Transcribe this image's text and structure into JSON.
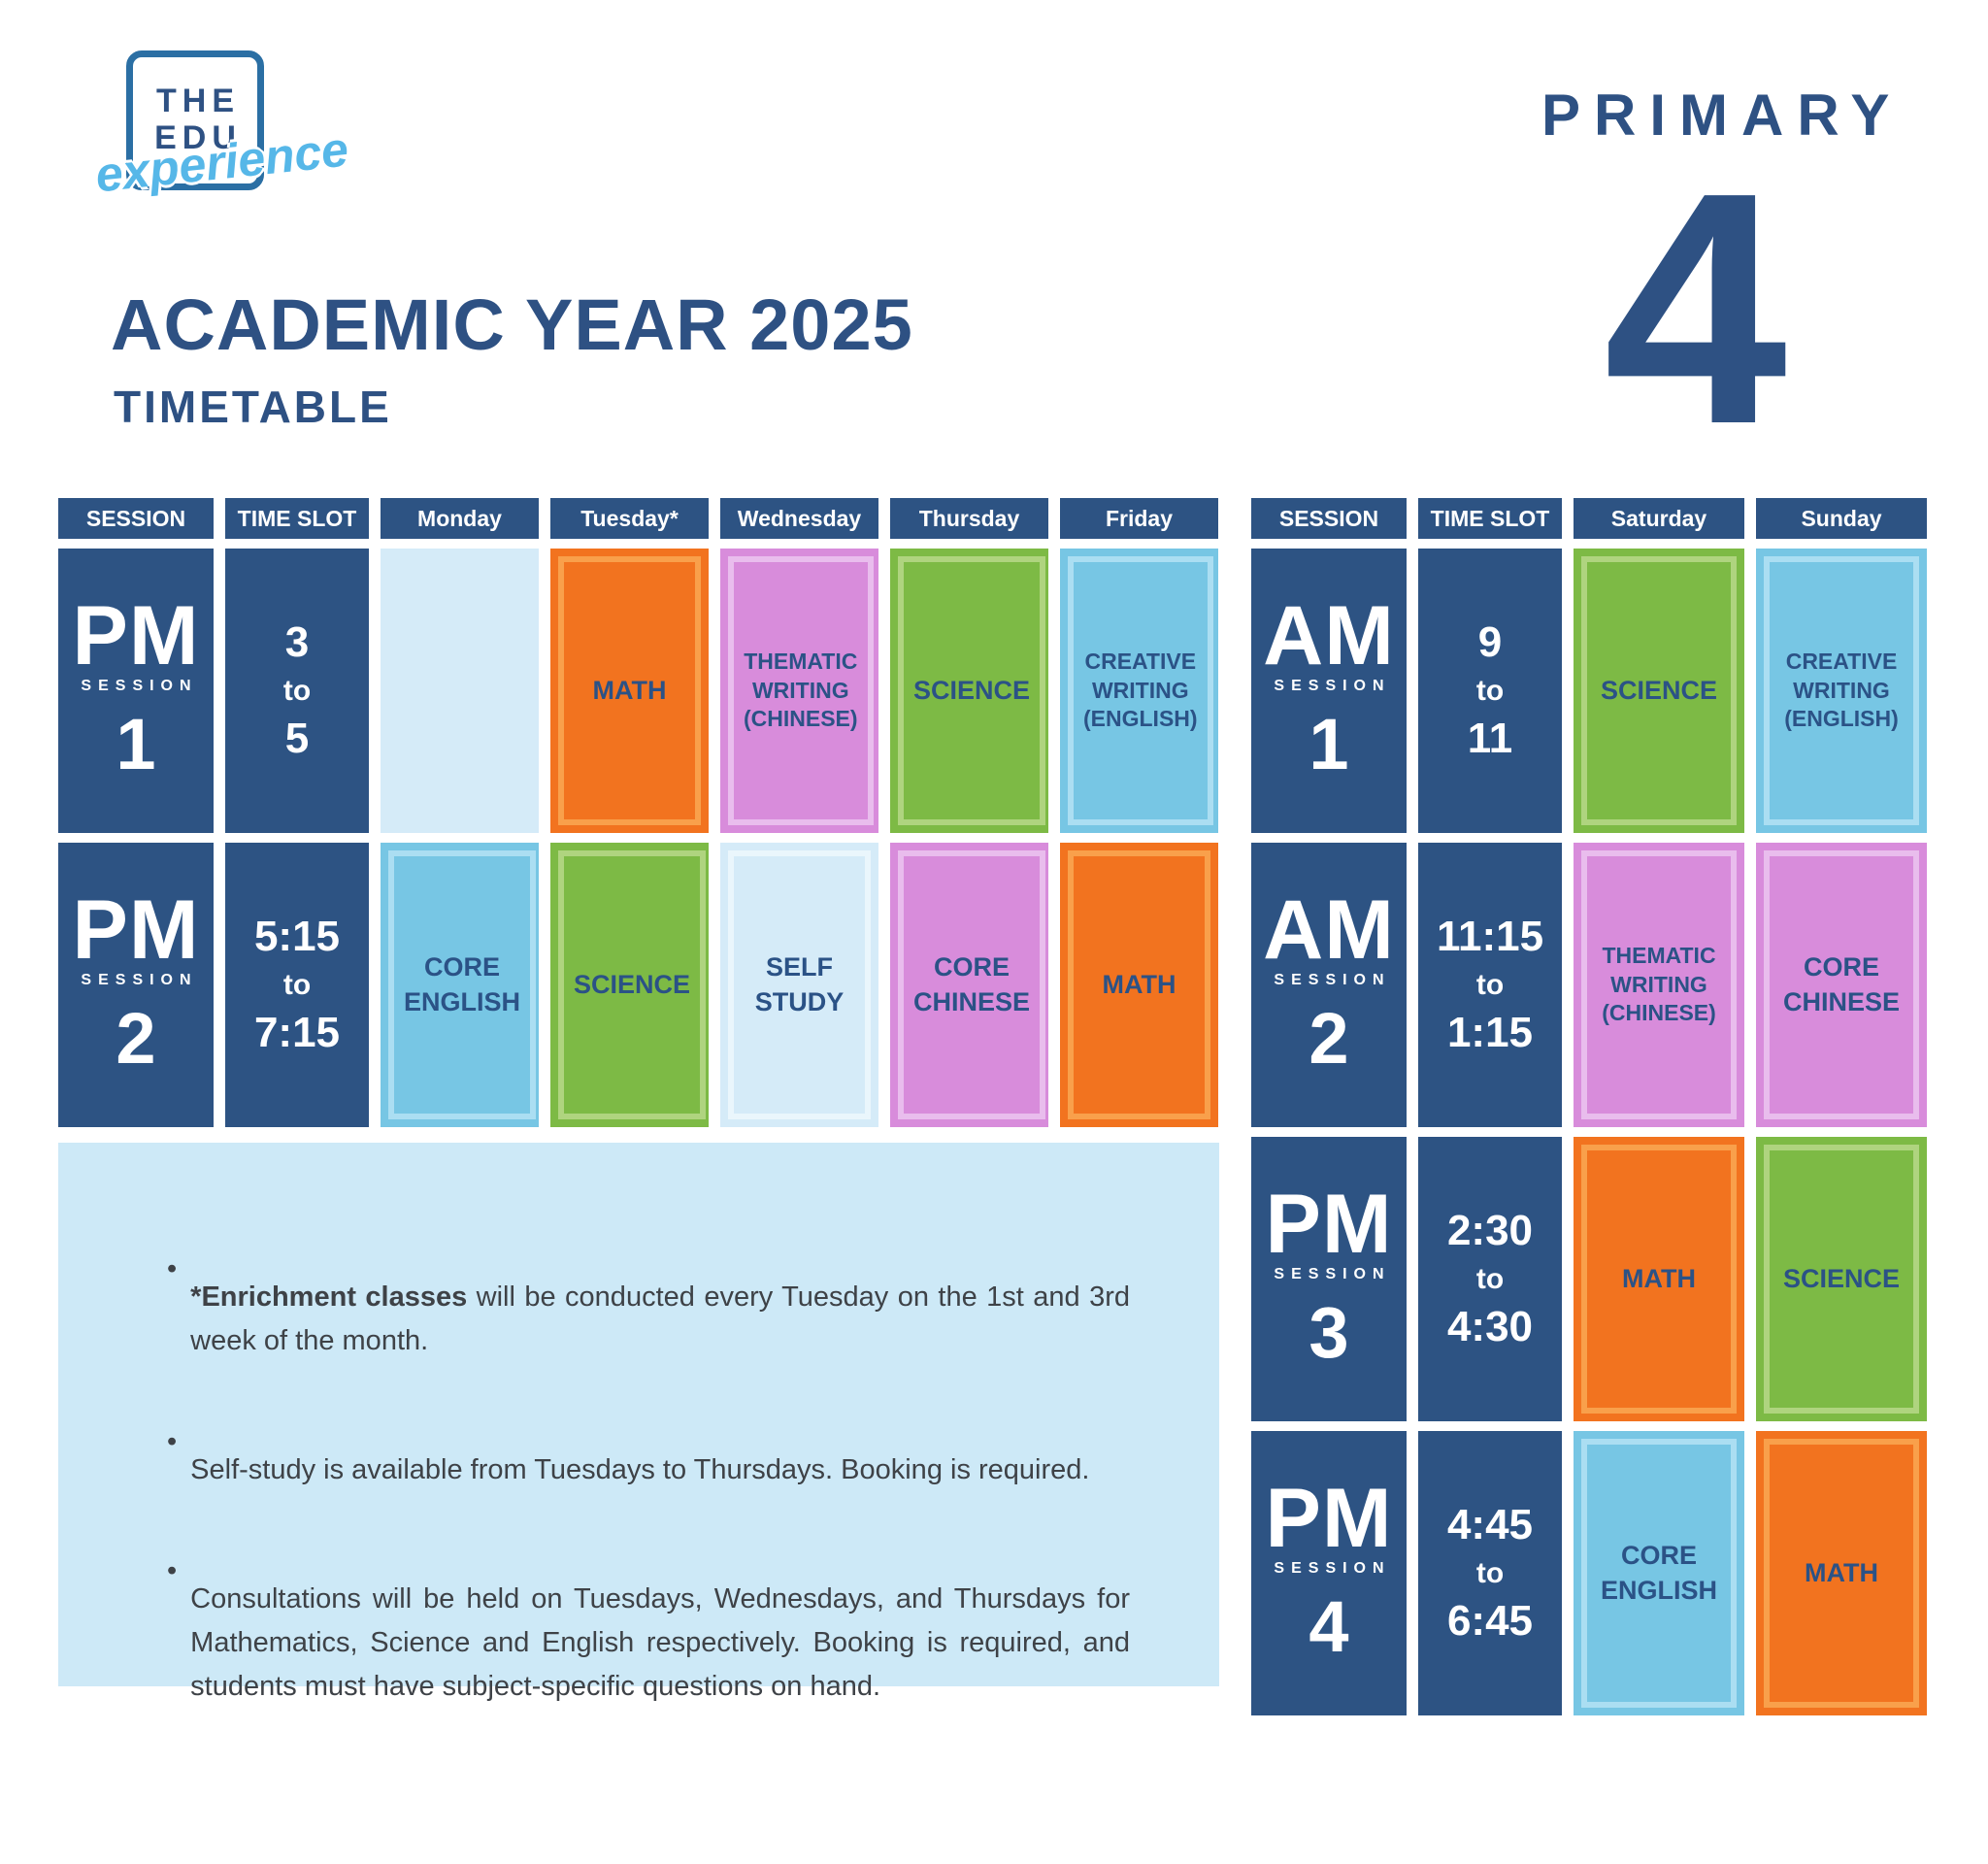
{
  "logo": {
    "line1": "THE",
    "line2": "EDU",
    "script": "experience"
  },
  "header": {
    "title": "ACADEMIC YEAR 2025",
    "subtitle": "TIMETABLE",
    "level_label": "PRIMARY",
    "level_number": "4"
  },
  "colors": {
    "dark_blue": "#2E5183",
    "orange": "#F2731F",
    "purple": "#D88CDB",
    "green": "#7DBA45",
    "sky_blue": "#77C6E4",
    "pale_blue": "#D5EBF8",
    "notes_background": "#CDE9F7",
    "script_blue": "#56B7E8"
  },
  "left_table": {
    "headers": [
      "SESSION",
      "TIME SLOT",
      "Monday",
      "Tuesday*",
      "Wednesday",
      "Thursday",
      "Friday"
    ],
    "rows": [
      {
        "session": {
          "period": "PM",
          "label": "SESSION",
          "number": "1"
        },
        "time": [
          "3",
          "to",
          "5"
        ],
        "cells": [
          {
            "subject": "",
            "variant": "empty"
          },
          {
            "subject": "MATH",
            "variant": "orange"
          },
          {
            "subject": "THEMATIC WRITING (CHINESE)",
            "variant": "purple"
          },
          {
            "subject": "SCIENCE",
            "variant": "green"
          },
          {
            "subject": "CREATIVE WRITING (ENGLISH)",
            "variant": "sky"
          }
        ]
      },
      {
        "session": {
          "period": "PM",
          "label": "SESSION",
          "number": "2"
        },
        "time": [
          "5:15",
          "to",
          "7:15"
        ],
        "cells": [
          {
            "subject": "CORE ENGLISH",
            "variant": "sky"
          },
          {
            "subject": "SCIENCE",
            "variant": "green"
          },
          {
            "subject": "SELF STUDY",
            "variant": "pale"
          },
          {
            "subject": "CORE CHINESE",
            "variant": "purple"
          },
          {
            "subject": "MATH",
            "variant": "orange"
          }
        ]
      }
    ]
  },
  "right_table": {
    "headers": [
      "SESSION",
      "TIME SLOT",
      "Saturday",
      "Sunday"
    ],
    "rows": [
      {
        "session": {
          "period": "AM",
          "label": "SESSION",
          "number": "1"
        },
        "time": [
          "9",
          "to",
          "11"
        ],
        "cells": [
          {
            "subject": "SCIENCE",
            "variant": "green"
          },
          {
            "subject": "CREATIVE WRITING (ENGLISH)",
            "variant": "sky"
          }
        ]
      },
      {
        "session": {
          "period": "AM",
          "label": "SESSION",
          "number": "2"
        },
        "time": [
          "11:15",
          "to",
          "1:15"
        ],
        "cells": [
          {
            "subject": "THEMATIC WRITING (CHINESE)",
            "variant": "purple"
          },
          {
            "subject": "CORE CHINESE",
            "variant": "purple"
          }
        ]
      },
      {
        "session": {
          "period": "PM",
          "label": "SESSION",
          "number": "3"
        },
        "time": [
          "2:30",
          "to",
          "4:30"
        ],
        "cells": [
          {
            "subject": "MATH",
            "variant": "orange"
          },
          {
            "subject": "SCIENCE",
            "variant": "green"
          }
        ]
      },
      {
        "session": {
          "period": "PM",
          "label": "SESSION",
          "number": "4"
        },
        "time": [
          "4:45",
          "to",
          "6:45"
        ],
        "cells": [
          {
            "subject": "CORE ENGLISH",
            "variant": "sky"
          },
          {
            "subject": "MATH",
            "variant": "orange"
          }
        ]
      }
    ]
  },
  "notes": [
    {
      "bold": "*Enrichment classes",
      "rest": " will be conducted every Tuesday on the 1st and 3rd week of the month."
    },
    {
      "bold": "",
      "rest": "Self-study is available from Tuesdays to Thursdays. Booking is required."
    },
    {
      "bold": "",
      "rest": "Consultations will be held on Tuesdays, Wednesdays, and Thursdays for Mathematics, Science and English respectively. Booking is required, and students must have subject-specific questions on hand."
    }
  ]
}
